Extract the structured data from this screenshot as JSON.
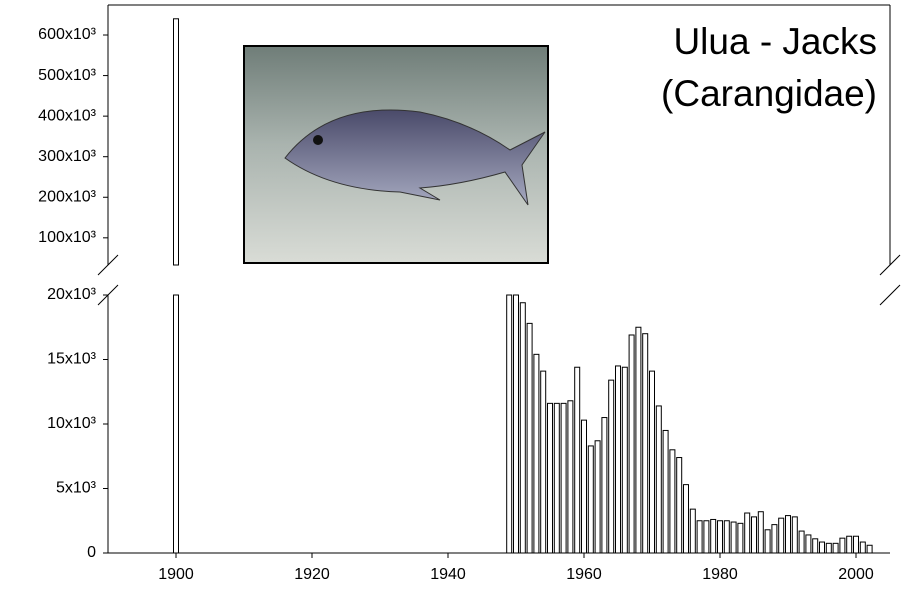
{
  "chart_data": {
    "type": "bar",
    "title": "Ulua - Jacks",
    "subtitle": "(Carangidae)",
    "x": [
      1900,
      1949,
      1950,
      1951,
      1952,
      1953,
      1954,
      1955,
      1956,
      1957,
      1958,
      1959,
      1960,
      1961,
      1962,
      1963,
      1964,
      1965,
      1966,
      1967,
      1968,
      1969,
      1970,
      1971,
      1972,
      1973,
      1974,
      1975,
      1976,
      1977,
      1978,
      1979,
      1980,
      1981,
      1982,
      1983,
      1984,
      1985,
      1986,
      1987,
      1988,
      1989,
      1990,
      1991,
      1992,
      1993,
      1994,
      1995,
      1996,
      1997,
      1998,
      1999,
      2000,
      2001,
      2002
    ],
    "values": [
      640000,
      20000,
      20000,
      19400,
      17800,
      15400,
      14100,
      11600,
      11600,
      11600,
      11800,
      14400,
      10300,
      8300,
      8700,
      10500,
      13400,
      14500,
      14400,
      16900,
      17500,
      17000,
      14100,
      11400,
      9500,
      8000,
      7400,
      5300,
      3400,
      2500,
      2500,
      2600,
      2500,
      2500,
      2400,
      2300,
      3100,
      2800,
      3200,
      1800,
      2200,
      2700,
      2900,
      2800,
      1700,
      1400,
      1100,
      850,
      750,
      750,
      1150,
      1300,
      1300,
      850,
      600
    ],
    "color": "#ffffff",
    "xlim": [
      1890,
      2005
    ],
    "xticks": [
      1900,
      1920,
      1940,
      1960,
      1980,
      2000
    ],
    "ylim": [
      0,
      20000
    ],
    "yticks": [
      0,
      {
        "value": 5000,
        "label": "5x10³"
      },
      {
        "value": 10000,
        "label": "10x10³"
      },
      {
        "value": 15000,
        "label": "15x10³"
      },
      {
        "value": 20000,
        "label": "20x10³"
      }
    ],
    "ylim_upper": [
      33000,
      674000
    ],
    "yticks_upper": [
      {
        "value": 100000,
        "label": "100x10³"
      },
      {
        "value": 200000,
        "label": "200x10³"
      },
      {
        "value": 300000,
        "label": "300x10³"
      },
      {
        "value": 400000,
        "label": "400x10³"
      },
      {
        "value": 500000,
        "label": "500x10³"
      },
      {
        "value": 600000,
        "label": "600x10³"
      }
    ],
    "axis_break": true,
    "grid": false
  }
}
